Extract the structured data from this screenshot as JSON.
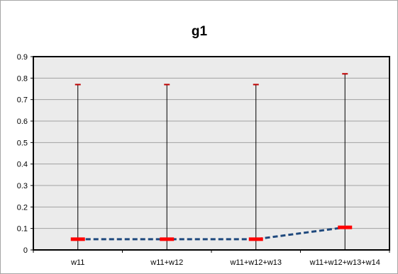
{
  "chart_data": {
    "type": "line",
    "title": "g1",
    "xlabel": "",
    "ylabel": "",
    "categories": [
      "w11",
      "w11+w12",
      "w11+w12+w13",
      "w11+w12+w13+w14"
    ],
    "series": [
      {
        "values": [
          0.05,
          0.05,
          0.05,
          0.105
        ],
        "error_low": [
          0.0,
          0.0,
          0.0,
          0.0
        ],
        "error_high": [
          0.77,
          0.77,
          0.77,
          0.82
        ]
      }
    ],
    "ylim": [
      0,
      0.9
    ],
    "yticks": [
      "0",
      "0.1",
      "0.2",
      "0.3",
      "0.4",
      "0.5",
      "0.6",
      "0.7",
      "0.8",
      "0.9"
    ],
    "grid": true,
    "legend": "none",
    "colors": {
      "line": "#1f497d",
      "marker": "#ff0000",
      "error_bar": "#000000",
      "error_cap": "#c00000",
      "plot_background": "#ebebeb",
      "gridline": "#a0a0a0"
    }
  }
}
